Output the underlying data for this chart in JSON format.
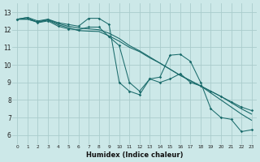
{
  "xlabel": "Humidex (Indice chaleur)",
  "background_color": "#cce8e8",
  "grid_color": "#aacccc",
  "line_color": "#1a6b6b",
  "xlim": [
    -0.5,
    23.5
  ],
  "ylim": [
    5.5,
    13.5
  ],
  "line1_x": [
    0,
    1,
    2,
    3,
    4,
    5,
    6,
    7,
    8,
    9,
    10,
    11,
    12,
    13,
    14,
    15,
    16,
    17,
    18,
    19,
    20,
    21,
    22,
    23
  ],
  "line1_y": [
    12.6,
    12.7,
    12.5,
    12.6,
    12.4,
    12.3,
    12.2,
    12.65,
    12.65,
    12.3,
    9.0,
    8.5,
    8.3,
    9.2,
    9.3,
    10.55,
    10.6,
    10.2,
    9.0,
    7.5,
    7.0,
    6.9,
    6.2,
    6.3
  ],
  "line2_x": [
    0,
    1,
    2,
    3,
    4,
    5,
    6,
    7,
    8,
    9,
    10,
    11,
    12,
    13,
    14,
    15,
    16,
    17,
    18,
    19,
    20,
    21,
    22,
    23
  ],
  "line2_y": [
    12.6,
    12.7,
    12.4,
    12.5,
    12.2,
    12.05,
    12.0,
    12.15,
    12.15,
    11.6,
    11.1,
    9.0,
    8.5,
    9.2,
    9.0,
    9.2,
    9.5,
    9.0,
    8.8,
    8.5,
    8.2,
    7.9,
    7.6,
    7.4
  ],
  "line3_x": [
    0,
    1,
    2,
    3,
    4,
    5,
    6,
    7,
    8,
    9,
    10,
    11,
    12,
    13,
    14,
    15,
    16,
    17,
    18,
    19,
    20,
    21,
    22,
    23
  ],
  "line3_y": [
    12.6,
    12.6,
    12.42,
    12.55,
    12.28,
    12.12,
    11.95,
    11.92,
    11.9,
    11.65,
    11.35,
    11.0,
    10.75,
    10.4,
    10.1,
    9.75,
    9.4,
    9.1,
    8.8,
    8.5,
    8.2,
    7.85,
    7.5,
    7.2
  ],
  "line4_x": [
    0,
    1,
    2,
    3,
    4,
    5,
    6,
    7,
    8,
    9,
    10,
    11,
    12,
    13,
    14,
    15,
    16,
    17,
    18,
    19,
    20,
    21,
    22,
    23
  ],
  "line4_y": [
    12.6,
    12.6,
    12.45,
    12.58,
    12.35,
    12.2,
    12.1,
    12.05,
    12.0,
    11.8,
    11.5,
    11.1,
    10.8,
    10.45,
    10.1,
    9.75,
    9.4,
    9.1,
    8.8,
    8.4,
    8.0,
    7.6,
    7.2,
    6.85
  ]
}
